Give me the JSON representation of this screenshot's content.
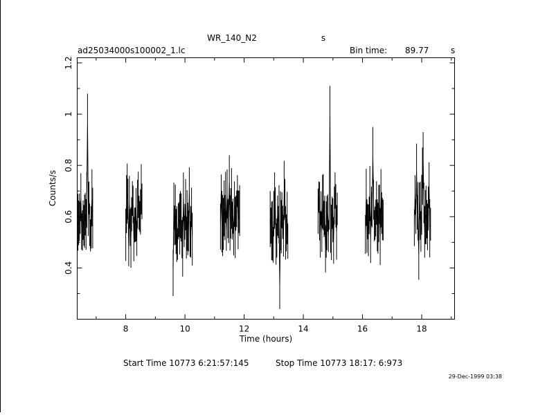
{
  "chart_data": {
    "type": "line",
    "title": "WR_140_N2",
    "title_unit": "s",
    "filename": "ad25034000s100002_1.lc",
    "bin_time_label": "Bin time:",
    "bin_time_value": "89.77",
    "bin_time_unit": "s",
    "xlabel": "Time (hours)",
    "ylabel": "Counts/s",
    "xlim": [
      6.36,
      19.11
    ],
    "ylim": [
      0.2,
      1.22
    ],
    "x_ticks": [
      8,
      10,
      12,
      14,
      16,
      18
    ],
    "x_tick_labels": [
      "8",
      "10",
      "12",
      "14",
      "16",
      "18"
    ],
    "y_ticks": [
      0.4,
      0.6,
      0.8,
      1.0,
      1.2
    ],
    "y_tick_labels": [
      "0.4",
      "0.6",
      "0.8",
      "1",
      "1.2"
    ],
    "grid": false,
    "segments": [
      [
        6.36,
        6.9
      ],
      [
        8.0,
        8.56
      ],
      [
        9.6,
        10.27
      ],
      [
        11.2,
        11.85
      ],
      [
        12.88,
        13.5
      ],
      [
        14.5,
        15.15
      ],
      [
        16.1,
        16.72
      ],
      [
        17.75,
        18.3
      ]
    ],
    "notable_points": [
      {
        "x": 6.72,
        "y": 1.08
      },
      {
        "x": 14.9,
        "y": 1.11
      },
      {
        "x": 16.35,
        "y": 0.95
      },
      {
        "x": 18.05,
        "y": 0.93
      },
      {
        "x": 13.2,
        "y": 0.24
      },
      {
        "x": 9.6,
        "y": 0.29
      }
    ],
    "series_seed": 140,
    "series_mean": 0.6,
    "series_bin_hours": 0.0249
  },
  "footer": {
    "start_time": "Start Time 10773  6:21:57:145",
    "stop_time": "Stop Time 10773 18:17: 6:973"
  },
  "timestamp": "29-Dec-1999 03:38"
}
